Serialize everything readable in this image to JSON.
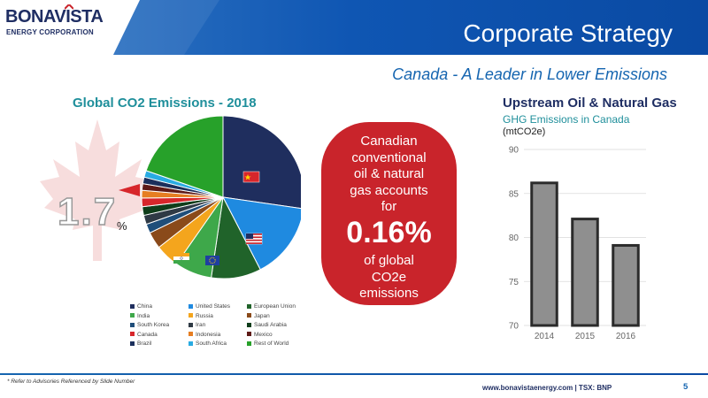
{
  "logo": {
    "name": "BONAVISTA",
    "sub": "ENERGY CORPORATION"
  },
  "header": {
    "title": "Corporate Strategy",
    "subtitle": "Canada - A Leader in Lower Emissions"
  },
  "pie": {
    "title": "Global CO2 Emissions - 2018",
    "highlight_value": "1.7",
    "highlight_unit": "%"
  },
  "callout": {
    "text_top": "Canadian\nconventional\noil & natural\ngas accounts\nfor",
    "value": "0.16%",
    "text_bottom": "of global\nCO2e\nemissions"
  },
  "bars": {
    "title": "Upstream Oil & Natural Gas",
    "subtitle": "GHG Emissions in Canada",
    "unit": "(mtCO2e)"
  },
  "chart_data": [
    {
      "type": "pie",
      "title": "Global CO2 Emissions - 2018",
      "categories": [
        "China",
        "United States",
        "European Union",
        "India",
        "Russia",
        "Japan",
        "South Korea",
        "Iran",
        "Saudi Arabia",
        "Canada",
        "Indonesia",
        "Mexico",
        "Brazil",
        "South Africa",
        "Rest of World"
      ],
      "values": [
        27,
        15,
        9.8,
        7.3,
        4.7,
        3.3,
        1.8,
        1.8,
        1.7,
        1.7,
        1.5,
        1.3,
        1.3,
        1.3,
        19.5
      ],
      "colors": [
        "#1f2e5e",
        "#1f8ae0",
        "#20632a",
        "#3ea84a",
        "#f4a51d",
        "#8a4a1a",
        "#1f4e7a",
        "#2f3a45",
        "#0f3d1a",
        "#d7262b",
        "#e67e22",
        "#5e1a17",
        "#1b2f5c",
        "#29abe2",
        "#27a12a"
      ],
      "legend": {
        "position": "bottom",
        "columns": 3
      }
    },
    {
      "type": "bar",
      "title": "Upstream Oil & Natural Gas",
      "subtitle": "GHG Emissions in Canada",
      "ylabel": "(mtCO2e)",
      "categories": [
        "2014",
        "2015",
        "2016"
      ],
      "values": [
        86.2,
        82.1,
        79.1
      ],
      "ylim": [
        70,
        90
      ],
      "yticks": [
        70,
        75,
        80,
        85,
        90
      ],
      "grid": true
    }
  ],
  "footer": {
    "note": "* Refer to Advisories Referenced by Slide Number",
    "website": "www.bonavistaenergy.com  |  TSX: BNP",
    "page": "5"
  },
  "colors": {
    "navy": "#1f2e63",
    "blue": "#1565b0",
    "teal": "#1f8f9b",
    "red": "#c9242b"
  }
}
